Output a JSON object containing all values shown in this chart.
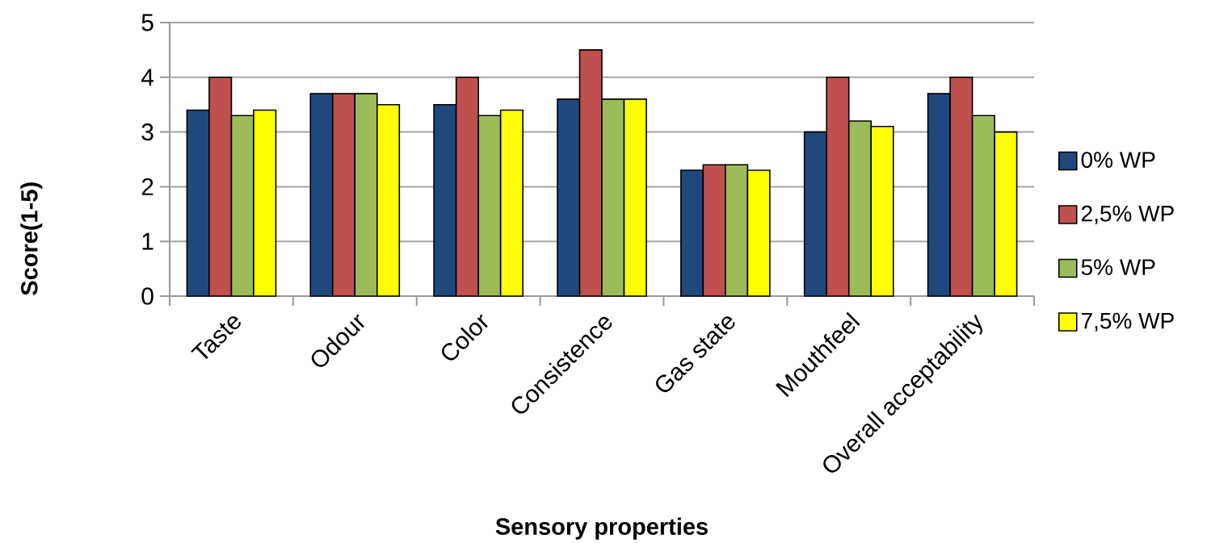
{
  "chart_data": {
    "type": "bar",
    "xlabel": "Sensory properties",
    "ylabel": "Score(1-5)",
    "categories": [
      "Taste",
      "Odour",
      "Color",
      "Consistence",
      "Gas state",
      "Mouthfeel",
      "Overall acceptability"
    ],
    "series": [
      {
        "name": "0% WP",
        "color": "#1f497d",
        "values": [
          3.4,
          3.7,
          3.5,
          3.6,
          2.3,
          3.0,
          3.7
        ]
      },
      {
        "name": "2,5% WP",
        "color": "#c0504d",
        "values": [
          4.0,
          3.7,
          4.0,
          4.5,
          2.4,
          4.0,
          4.0
        ]
      },
      {
        "name": "5% WP",
        "color": "#9bbb59",
        "values": [
          3.3,
          3.7,
          3.3,
          3.6,
          2.4,
          3.2,
          3.3
        ]
      },
      {
        "name": "7,5% WP",
        "color": "#ffff00",
        "values": [
          3.4,
          3.5,
          3.4,
          3.6,
          2.3,
          3.1,
          3.0
        ]
      }
    ],
    "ylim": [
      0,
      5
    ],
    "yticks": [
      0,
      1,
      2,
      3,
      4,
      5
    ],
    "grid": "y",
    "legend": "right"
  }
}
